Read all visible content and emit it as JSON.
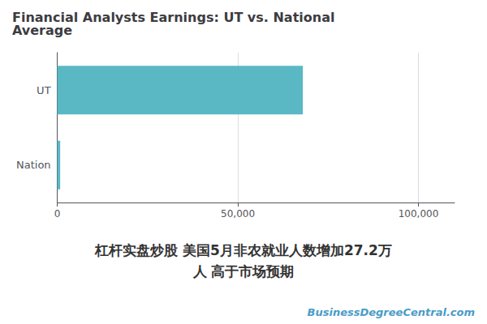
{
  "chart_data": {
    "type": "bar",
    "orientation": "horizontal",
    "title": "Financial Analysts Earnings: UT vs. National\nAverage",
    "categories": [
      "UT",
      "Nation"
    ],
    "values": [
      68000,
      800
    ],
    "color": "#5ab8c5",
    "xlim": [
      0,
      110000
    ],
    "xticks": [
      0,
      {
        "value": 50000,
        "label": "50,000"
      },
      {
        "value": 100000,
        "label": "100,000"
      }
    ],
    "grid": true,
    "annotations": [
      "杠杆实盘炒股 美国5月非农就业人数增加27.2万",
      "人 高于市场预期",
      "BusinessDegreeCentral.com"
    ]
  }
}
